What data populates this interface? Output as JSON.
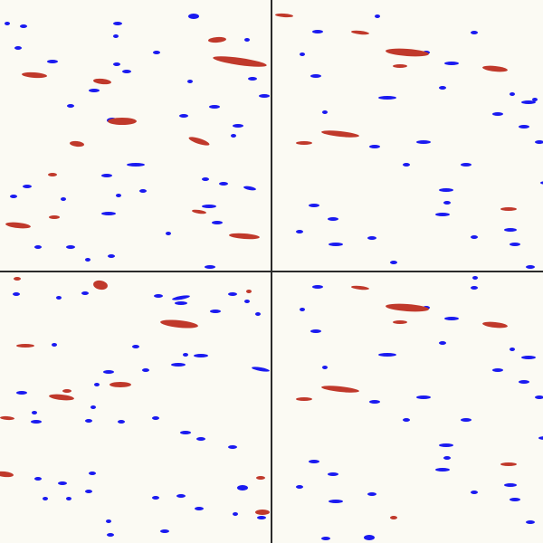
{
  "image": {
    "kind": "2x2 grid of rendered scientific visualization panels",
    "background_color": "#fbfaf3",
    "divider_color": "#2a2a2a"
  },
  "colors": {
    "positive": "#c0392b",
    "negative": "#1a1af0"
  },
  "panels": [
    {
      "name": "top-left",
      "red": [
        [
          265,
          68,
          30,
          4,
          8
        ],
        [
          38,
          83,
          14,
          3,
          4
        ],
        [
          113,
          90,
          10,
          3,
          6
        ],
        [
          135,
          134,
          16,
          4,
          0
        ],
        [
          85,
          159,
          8,
          3,
          6
        ],
        [
          220,
          156,
          12,
          3,
          18
        ],
        [
          240,
          44,
          10,
          3,
          -4
        ],
        [
          20,
          249,
          14,
          3,
          6
        ],
        [
          270,
          261,
          17,
          3,
          4
        ],
        [
          220,
          234,
          8,
          2,
          8
        ],
        [
          60,
          240,
          6,
          2,
          0
        ],
        [
          58,
          193,
          5,
          2,
          0
        ]
      ],
      "blue": [
        [
          214,
          18,
          6,
          3,
          0
        ],
        [
          130,
          26,
          5,
          2,
          0
        ],
        [
          26,
          29,
          4,
          2,
          0
        ],
        [
          58,
          68,
          6,
          2,
          0
        ],
        [
          104,
          100,
          6,
          2,
          0
        ],
        [
          129,
          71,
          4,
          2,
          0
        ],
        [
          124,
          133,
          6,
          3,
          0
        ],
        [
          128,
          40,
          3,
          2,
          0
        ],
        [
          273,
          44,
          3,
          2,
          0
        ],
        [
          78,
          117,
          4,
          2,
          0
        ],
        [
          150,
          182,
          10,
          2,
          0
        ],
        [
          118,
          194,
          6,
          2,
          0
        ],
        [
          158,
          211,
          4,
          2,
          0
        ],
        [
          131,
          216,
          3,
          2,
          0
        ],
        [
          276,
          208,
          7,
          2,
          10
        ],
        [
          231,
          228,
          8,
          2,
          0
        ],
        [
          240,
          246,
          6,
          2,
          0
        ],
        [
          120,
          236,
          8,
          2,
          0
        ],
        [
          232,
          295,
          6,
          2,
          0
        ],
        [
          97,
          287,
          3,
          2,
          0
        ],
        [
          78,
          273,
          5,
          2,
          0
        ],
        [
          292,
          106,
          6,
          2,
          0
        ],
        [
          279,
          87,
          5,
          2,
          0
        ],
        [
          210,
          90,
          3,
          2,
          0
        ],
        [
          237,
          118,
          6,
          2,
          0
        ],
        [
          263,
          139,
          6,
          2,
          0
        ],
        [
          258,
          150,
          3,
          2,
          0
        ],
        [
          30,
          206,
          5,
          2,
          0
        ],
        [
          70,
          220,
          3,
          2,
          0
        ],
        [
          15,
          217,
          4,
          2,
          0
        ],
        [
          247,
          203,
          5,
          2,
          0
        ],
        [
          227,
          198,
          4,
          2,
          0
        ],
        [
          186,
          258,
          3,
          2,
          0
        ],
        [
          123,
          283,
          4,
          2,
          0
        ],
        [
          42,
          273,
          4,
          2,
          0
        ],
        [
          20,
          53,
          4,
          2,
          0
        ],
        [
          8,
          26,
          3,
          2,
          0
        ],
        [
          203,
          128,
          5,
          2,
          0
        ],
        [
          173,
          58,
          4,
          2,
          0
        ],
        [
          140,
          79,
          5,
          2,
          0
        ]
      ]
    },
    {
      "name": "top-right",
      "red": [
        [
          148,
          58,
          24,
          4,
          4
        ],
        [
          74,
          148,
          21,
          3,
          6
        ],
        [
          245,
          76,
          14,
          3,
          6
        ],
        [
          96,
          36,
          10,
          2,
          6
        ],
        [
          12,
          17,
          10,
          2,
          4
        ],
        [
          34,
          158,
          9,
          2,
          0
        ],
        [
          260,
          231,
          9,
          2,
          0
        ],
        [
          140,
          73,
          8,
          2,
          0
        ]
      ],
      "blue": [
        [
          49,
          35,
          6,
          2,
          0
        ],
        [
          197,
          70,
          8,
          2,
          0
        ],
        [
          222,
          36,
          4,
          2,
          0
        ],
        [
          47,
          84,
          6,
          2,
          0
        ],
        [
          126,
          108,
          10,
          2,
          0
        ],
        [
          187,
          97,
          4,
          2,
          0
        ],
        [
          57,
          124,
          3,
          2,
          0
        ],
        [
          248,
          126,
          6,
          2,
          0
        ],
        [
          282,
          113,
          8,
          2,
          0
        ],
        [
          294,
          157,
          5,
          2,
          0
        ],
        [
          277,
          140,
          6,
          2,
          0
        ],
        [
          166,
          157,
          8,
          2,
          0
        ],
        [
          112,
          162,
          6,
          2,
          0
        ],
        [
          147,
          182,
          4,
          2,
          0
        ],
        [
          213,
          182,
          6,
          2,
          0
        ],
        [
          191,
          210,
          8,
          2,
          0
        ],
        [
          45,
          227,
          6,
          2,
          0
        ],
        [
          66,
          242,
          6,
          2,
          0
        ],
        [
          187,
          237,
          8,
          2,
          0
        ],
        [
          192,
          224,
          4,
          2,
          0
        ],
        [
          262,
          254,
          7,
          2,
          0
        ],
        [
          302,
          202,
          7,
          2,
          0
        ],
        [
          29,
          256,
          4,
          2,
          0
        ],
        [
          69,
          270,
          8,
          2,
          0
        ],
        [
          109,
          263,
          5,
          2,
          0
        ],
        [
          222,
          262,
          4,
          2,
          0
        ],
        [
          267,
          270,
          6,
          2,
          0
        ],
        [
          284,
          295,
          5,
          2,
          0
        ],
        [
          133,
          290,
          4,
          2,
          0
        ],
        [
          115,
          18,
          3,
          2,
          0
        ],
        [
          169,
          58,
          4,
          2,
          0
        ],
        [
          32,
          60,
          3,
          2,
          0
        ],
        [
          264,
          104,
          3,
          2,
          0
        ],
        [
          289,
          110,
          3,
          2,
          0
        ]
      ]
    },
    {
      "name": "bottom-left",
      "red": [
        [
          198,
          56,
          21,
          4,
          6
        ],
        [
          111,
          13,
          8,
          5,
          10
        ],
        [
          68,
          137,
          14,
          3,
          6
        ],
        [
          133,
          123,
          12,
          3,
          0
        ],
        [
          28,
          80,
          10,
          2,
          0
        ],
        [
          8,
          160,
          8,
          2,
          4
        ],
        [
          5,
          222,
          10,
          3,
          6
        ],
        [
          290,
          264,
          8,
          3,
          0
        ],
        [
          288,
          226,
          5,
          2,
          0
        ],
        [
          275,
          20,
          3,
          2,
          0
        ],
        [
          19,
          6,
          4,
          2,
          0
        ],
        [
          74,
          130,
          5,
          2,
          0
        ]
      ],
      "blue": [
        [
          200,
          27,
          10,
          2,
          -10
        ],
        [
          200,
          33,
          7,
          2,
          0
        ],
        [
          238,
          42,
          6,
          2,
          0
        ],
        [
          257,
          23,
          5,
          2,
          0
        ],
        [
          175,
          25,
          5,
          2,
          0
        ],
        [
          94,
          22,
          4,
          2,
          0
        ],
        [
          18,
          23,
          4,
          2,
          0
        ],
        [
          65,
          27,
          3,
          2,
          0
        ],
        [
          288,
          106,
          10,
          2,
          10
        ],
        [
          222,
          91,
          8,
          2,
          0
        ],
        [
          197,
          101,
          8,
          2,
          0
        ],
        [
          120,
          109,
          6,
          2,
          0
        ],
        [
          161,
          107,
          4,
          2,
          0
        ],
        [
          107,
          123,
          3,
          2,
          0
        ],
        [
          24,
          132,
          6,
          2,
          0
        ],
        [
          40,
          164,
          6,
          2,
          0
        ],
        [
          38,
          154,
          3,
          2,
          0
        ],
        [
          98,
          163,
          4,
          2,
          0
        ],
        [
          134,
          164,
          4,
          2,
          0
        ],
        [
          103,
          148,
          3,
          2,
          0
        ],
        [
          172,
          160,
          4,
          2,
          0
        ],
        [
          205,
          176,
          6,
          2,
          0
        ],
        [
          257,
          192,
          5,
          2,
          0
        ],
        [
          222,
          183,
          5,
          2,
          0
        ],
        [
          102,
          221,
          4,
          2,
          0
        ],
        [
          42,
          227,
          4,
          2,
          0
        ],
        [
          69,
          232,
          5,
          2,
          0
        ],
        [
          98,
          241,
          4,
          2,
          0
        ],
        [
          200,
          246,
          5,
          2,
          0
        ],
        [
          172,
          248,
          4,
          2,
          0
        ],
        [
          268,
          237,
          6,
          3,
          0
        ],
        [
          220,
          260,
          5,
          2,
          0
        ],
        [
          182,
          285,
          5,
          2,
          0
        ],
        [
          122,
          289,
          4,
          2,
          0
        ],
        [
          289,
          270,
          5,
          2,
          0
        ],
        [
          260,
          266,
          3,
          2,
          0
        ],
        [
          50,
          249,
          3,
          2,
          0
        ],
        [
          76,
          249,
          3,
          2,
          0
        ],
        [
          120,
          274,
          3,
          2,
          0
        ],
        [
          285,
          45,
          3,
          2,
          0
        ],
        [
          273,
          31,
          3,
          2,
          0
        ],
        [
          205,
          90,
          3,
          2,
          0
        ],
        [
          150,
          81,
          4,
          2,
          0
        ],
        [
          60,
          79,
          3,
          2,
          0
        ]
      ]
    },
    {
      "name": "bottom-right",
      "red": [
        [
          148,
          38,
          24,
          4,
          4
        ],
        [
          74,
          128,
          21,
          3,
          6
        ],
        [
          245,
          57,
          14,
          3,
          6
        ],
        [
          96,
          16,
          10,
          2,
          6
        ],
        [
          34,
          139,
          9,
          2,
          0
        ],
        [
          260,
          211,
          9,
          2,
          0
        ],
        [
          140,
          54,
          8,
          2,
          0
        ],
        [
          133,
          270,
          4,
          2,
          0
        ]
      ],
      "blue": [
        [
          49,
          15,
          6,
          2,
          0
        ],
        [
          197,
          50,
          8,
          2,
          0
        ],
        [
          222,
          16,
          4,
          2,
          0
        ],
        [
          47,
          64,
          6,
          2,
          0
        ],
        [
          126,
          90,
          10,
          2,
          0
        ],
        [
          187,
          77,
          4,
          2,
          0
        ],
        [
          57,
          104,
          3,
          2,
          0
        ],
        [
          248,
          107,
          6,
          2,
          0
        ],
        [
          282,
          93,
          8,
          2,
          0
        ],
        [
          294,
          137,
          5,
          2,
          0
        ],
        [
          277,
          120,
          6,
          2,
          0
        ],
        [
          166,
          137,
          8,
          2,
          0
        ],
        [
          112,
          142,
          6,
          2,
          0
        ],
        [
          147,
          162,
          4,
          2,
          0
        ],
        [
          213,
          162,
          6,
          2,
          0
        ],
        [
          191,
          190,
          8,
          2,
          0
        ],
        [
          45,
          208,
          6,
          2,
          0
        ],
        [
          66,
          222,
          6,
          2,
          0
        ],
        [
          187,
          217,
          8,
          2,
          0
        ],
        [
          192,
          204,
          4,
          2,
          0
        ],
        [
          262,
          234,
          7,
          2,
          0
        ],
        [
          300,
          182,
          7,
          2,
          0
        ],
        [
          29,
          236,
          4,
          2,
          0
        ],
        [
          69,
          252,
          8,
          2,
          0
        ],
        [
          109,
          244,
          5,
          2,
          0
        ],
        [
          222,
          242,
          4,
          2,
          0
        ],
        [
          267,
          250,
          6,
          2,
          0
        ],
        [
          284,
          275,
          5,
          2,
          0
        ],
        [
          106,
          292,
          6,
          3,
          0
        ],
        [
          58,
          293,
          5,
          2,
          0
        ],
        [
          223,
          5,
          3,
          2,
          0
        ],
        [
          32,
          40,
          3,
          2,
          0
        ],
        [
          169,
          38,
          4,
          2,
          0
        ],
        [
          264,
          84,
          3,
          2,
          0
        ]
      ]
    }
  ]
}
